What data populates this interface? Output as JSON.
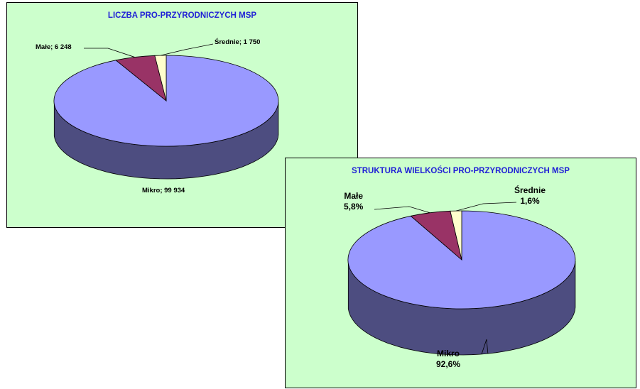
{
  "colors": {
    "panel_bg": "#ccffcc",
    "title": "#1f1fd6",
    "mikro": "#9999ff",
    "mikro_side": "#4d4d80",
    "male": "#993366",
    "male_side": "#4d1a33",
    "srednie": "#ffffcc",
    "srednie_side": "#80806a"
  },
  "chart_data": [
    {
      "type": "pie",
      "style": "3d",
      "title": "LICZBA PRO-PRZYRODNICZYCH MSP",
      "slices": [
        {
          "name": "Mikro",
          "value": 99934,
          "label": "Mikro; 99 934"
        },
        {
          "name": "Małe",
          "value": 6248,
          "label": "Małe; 6 248"
        },
        {
          "name": "Średnie",
          "value": 1750,
          "label": "Średnie; 1 750"
        }
      ]
    },
    {
      "type": "pie",
      "style": "3d",
      "title": "STRUKTURA WIELKOŚCI PRO-PRZYRODNICZYCH MSP",
      "slices": [
        {
          "name": "Mikro",
          "value": 92.6,
          "label_name": "Mikro",
          "label_value": "92,6%"
        },
        {
          "name": "Małe",
          "value": 5.8,
          "label_name": "Małe",
          "label_value": "5,8%"
        },
        {
          "name": "Średnie",
          "value": 1.6,
          "label_name": "Średnie",
          "label_value": "1,6%"
        }
      ]
    }
  ]
}
